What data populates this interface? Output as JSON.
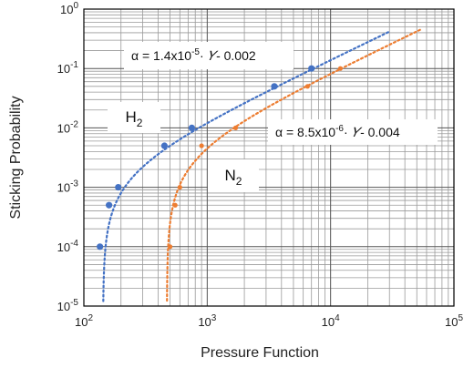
{
  "chart_data": {
    "type": "scatter",
    "xlabel": "Pressure Function",
    "ylabel": "Sticking Probability",
    "xscale": "log",
    "yscale": "log",
    "xlim": [
      100,
      100000
    ],
    "ylim": [
      1e-05,
      1
    ],
    "grid": true,
    "x_ticks": [
      {
        "base": "10",
        "exp": "2"
      },
      {
        "base": "10",
        "exp": "3"
      },
      {
        "base": "10",
        "exp": "4"
      },
      {
        "base": "10",
        "exp": "5"
      }
    ],
    "y_ticks": [
      {
        "base": "10",
        "exp": "-5"
      },
      {
        "base": "10",
        "exp": "-4"
      },
      {
        "base": "10",
        "exp": "-3"
      },
      {
        "base": "10",
        "exp": "-2"
      },
      {
        "base": "10",
        "exp": "-1"
      },
      {
        "base": "10",
        "exp": "0"
      }
    ],
    "series": [
      {
        "name": "H2",
        "label_main": "H",
        "label_sub": "2",
        "color": "#4472c4",
        "points": [
          {
            "x": 135,
            "y": 0.0001
          },
          {
            "x": 160,
            "y": 0.0005
          },
          {
            "x": 190,
            "y": 0.001
          },
          {
            "x": 450,
            "y": 0.005
          },
          {
            "x": 750,
            "y": 0.01
          },
          {
            "x": 3500,
            "y": 0.05
          },
          {
            "x": 7000,
            "y": 0.1
          }
        ],
        "fit": {
          "slope": 1.4e-05,
          "intercept": -0.002,
          "x_end": 30000
        }
      },
      {
        "name": "N2",
        "label_main": "N",
        "label_sub": "2",
        "color": "#ed7d31",
        "points": [
          {
            "x": 500,
            "y": 0.0001
          },
          {
            "x": 550,
            "y": 0.0005
          },
          {
            "x": 600,
            "y": 0.001
          },
          {
            "x": 900,
            "y": 0.005
          },
          {
            "x": 1700,
            "y": 0.01
          },
          {
            "x": 6500,
            "y": 0.05
          },
          {
            "x": 12000,
            "y": 0.1
          }
        ],
        "fit": {
          "slope": 8.5e-06,
          "intercept": -0.004,
          "x_end": 55000
        }
      }
    ],
    "annotations": [
      {
        "series": "H2",
        "parts": {
          "prefix": "α = 1.4x10",
          "exp": "-5",
          "mid": "· ",
          "symbol": "𝛶",
          "suffix": "- 0.002"
        }
      },
      {
        "series": "N2",
        "parts": {
          "prefix": "α = 8.5x10",
          "exp": "-6",
          "mid": "· ",
          "symbol": "𝛶",
          "suffix": "- 0.004"
        }
      }
    ]
  }
}
